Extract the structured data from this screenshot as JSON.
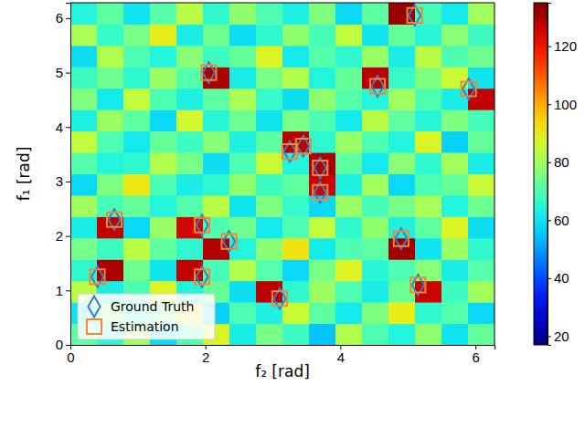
{
  "chart_data": {
    "type": "heatmap",
    "xlabel": "f₂ [rad]",
    "ylabel": "f₁ [rad]",
    "xlim": [
      0,
      6.283
    ],
    "ylim": [
      0,
      6.283
    ],
    "xticks": [
      0,
      2,
      4,
      6
    ],
    "yticks": [
      0,
      1,
      2,
      3,
      4,
      5,
      6
    ],
    "cells": [
      [
        72,
        65,
        80,
        58,
        70,
        88,
        62,
        75,
        68,
        55,
        82,
        70,
        64,
        78,
        60,
        73
      ],
      [
        60,
        78,
        66,
        74,
        92,
        57,
        70,
        63,
        85,
        72,
        61,
        76,
        90,
        66,
        71,
        58
      ],
      [
        83,
        62,
        70,
        88,
        64,
        73,
        59,
        128,
        66,
        79,
        70,
        62,
        74,
        126,
        68,
        80
      ],
      [
        66,
        130,
        74,
        60,
        127,
        69,
        82,
        71,
        58,
        75,
        88,
        65,
        70,
        77,
        62,
        71
      ],
      [
        75,
        68,
        83,
        72,
        66,
        129,
        64,
        77,
        92,
        61,
        70,
        72,
        131,
        60,
        79,
        66
      ],
      [
        62,
        127,
        58,
        79,
        125,
        70,
        74,
        61,
        70,
        84,
        66,
        78,
        63,
        72,
        88,
        59
      ],
      [
        80,
        69,
        73,
        64,
        71,
        83,
        60,
        76,
        67,
        58,
        79,
        69,
        75,
        81,
        64,
        74
      ],
      [
        58,
        76,
        91,
        70,
        62,
        66,
        78,
        68,
        72,
        126,
        63,
        80,
        58,
        70,
        73,
        85
      ],
      [
        71,
        64,
        66,
        82,
        75,
        59,
        70,
        85,
        64,
        130,
        72,
        61,
        77,
        66,
        80,
        62
      ],
      [
        84,
        70,
        61,
        73,
        68,
        77,
        63,
        72,
        128,
        66,
        79,
        70,
        64,
        88,
        57,
        73
      ],
      [
        63,
        79,
        72,
        58,
        86,
        65,
        74,
        60,
        75,
        70,
        61,
        83,
        72,
        65,
        76,
        69
      ],
      [
        76,
        61,
        84,
        70,
        63,
        72,
        81,
        67,
        59,
        78,
        71,
        64,
        80,
        70,
        62,
        127
      ],
      [
        68,
        74,
        66,
        79,
        71,
        130,
        62,
        75,
        82,
        64,
        73,
        128,
        67,
        76,
        85,
        60
      ],
      [
        59,
        82,
        70,
        64,
        77,
        68,
        73,
        88,
        61,
        71,
        66,
        79,
        62,
        83,
        70,
        74
      ],
      [
        81,
        67,
        75,
        90,
        62,
        74,
        59,
        66,
        78,
        69,
        84,
        60,
        73,
        65,
        77,
        68
      ],
      [
        64,
        72,
        60,
        71,
        83,
        66,
        78,
        70,
        63,
        76,
        58,
        72,
        132,
        69,
        61,
        80
      ]
    ],
    "colorbar_lim": [
      17,
      135
    ],
    "colorbar_ticks": [
      20,
      40,
      60,
      80,
      100,
      120
    ],
    "legend": "lower left",
    "series": [
      {
        "name": "Ground Truth",
        "type": "scatter",
        "marker": "diamond",
        "color": "#3d7bc4",
        "x": [
          5.1,
          2.05,
          4.55,
          5.9,
          3.45,
          3.25,
          3.7,
          3.7,
          0.65,
          1.95,
          2.35,
          4.9,
          0.4,
          1.95,
          5.15,
          3.1
        ],
        "y": [
          6.05,
          5.0,
          4.75,
          4.7,
          3.65,
          3.55,
          3.25,
          2.8,
          2.3,
          2.2,
          1.9,
          1.95,
          1.25,
          1.25,
          1.1,
          0.85
        ]
      },
      {
        "name": "Estimation",
        "type": "scatter",
        "marker": "square",
        "color": "#f5862f",
        "x": [
          5.1,
          2.05,
          4.55,
          5.9,
          3.45,
          3.25,
          3.7,
          3.7,
          0.65,
          1.95,
          2.35,
          4.9,
          0.4,
          1.95,
          5.15,
          3.1
        ],
        "y": [
          6.05,
          5.0,
          4.75,
          4.7,
          3.65,
          3.55,
          3.25,
          2.8,
          2.3,
          2.2,
          1.9,
          1.95,
          1.25,
          1.25,
          1.1,
          0.85
        ]
      }
    ]
  }
}
